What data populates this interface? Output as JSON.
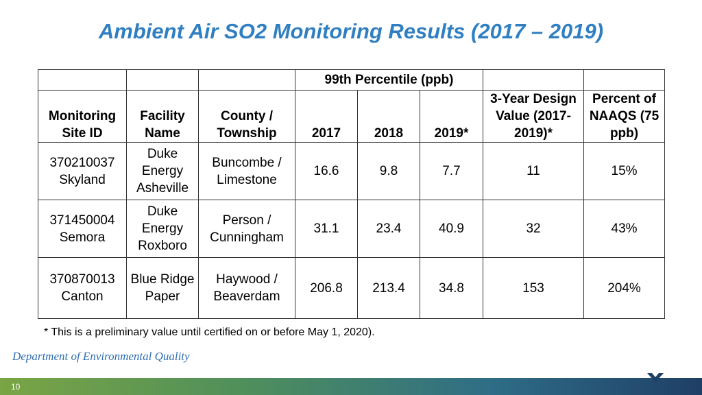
{
  "title": "Ambient Air SO2 Monitoring Results (2017 – 2019)",
  "table": {
    "group_header": "99th Percentile (ppb)",
    "headers": {
      "site": "Monitoring Site ID",
      "facility": "Facility Name",
      "county": "County / Township",
      "y2017": "2017",
      "y2018": "2018",
      "y2019": "2019*",
      "design_value": "3-Year Design Value (2017-2019)*",
      "percent_naaqs": "Percent of NAAQS (75 ppb)"
    },
    "rows": [
      {
        "site": "370210037 Skyland",
        "facility": "Duke Energy Asheville",
        "county": "Buncombe / Limestone",
        "y2017": "16.6",
        "y2018": "9.8",
        "y2019": "7.7",
        "design_value": "11",
        "percent_naaqs": "15%"
      },
      {
        "site": "371450004 Semora",
        "facility": "Duke Energy Roxboro",
        "county": "Person / Cunningham",
        "y2017": "31.1",
        "y2018": "23.4",
        "y2019": "40.9",
        "design_value": "32",
        "percent_naaqs": "43%"
      },
      {
        "site": "370870013 Canton",
        "facility": "Blue Ridge Paper",
        "county": "Haywood / Beaverdam",
        "y2017": "206.8",
        "y2018": "213.4",
        "y2019": "34.8",
        "design_value": "153",
        "percent_naaqs": "204%"
      }
    ]
  },
  "footnote": "* This is a preliminary value until certified on or before May 1, 2020).",
  "footer": {
    "department": "Department of Environmental Quality",
    "page_number": "10",
    "bar_colors": [
      "#7aa544",
      "#1f3f66"
    ],
    "logo_icon": "deq-chevron-icon"
  }
}
